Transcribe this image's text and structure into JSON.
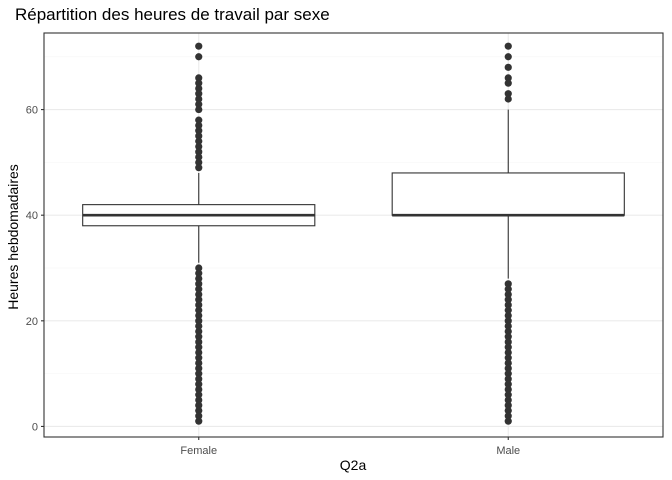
{
  "chart_data": {
    "type": "boxplot",
    "title": "Répartition des heures de travail par sexe",
    "xlabel": "Q2a",
    "ylabel": "Heures hebdomadaires",
    "categories": [
      "Female",
      "Male"
    ],
    "ylim": [
      -2,
      74.5
    ],
    "yticks": [
      0,
      20,
      40,
      60
    ],
    "ytick_labels": [
      "0",
      "20",
      "40",
      "60"
    ],
    "grid": true,
    "colors": {
      "box_fill": "#ffffff",
      "line": "#333333",
      "grid_major": "#ebebeb",
      "grid_minor": "#f5f5f5",
      "panel_border": "#333333"
    },
    "boxes": [
      {
        "category": "Female",
        "q1": 38,
        "median": 40,
        "q3": 42,
        "whisker_low": 31,
        "whisker_high": 48,
        "outliers": [
          72,
          70,
          66,
          65,
          64,
          63,
          62,
          61,
          60,
          58,
          57,
          56,
          55,
          54,
          53,
          52,
          51,
          50,
          49,
          30,
          29,
          28,
          27,
          26,
          25,
          24,
          23,
          22,
          21,
          20,
          19,
          18,
          17,
          16,
          15,
          14,
          13,
          12,
          11,
          10,
          9,
          8,
          7,
          6,
          5,
          4,
          3,
          2,
          1
        ]
      },
      {
        "category": "Male",
        "q1": 40,
        "median": 40,
        "q3": 48,
        "whisker_low": 28,
        "whisker_high": 60,
        "outliers": [
          72,
          70,
          68,
          66,
          65,
          63,
          62,
          27,
          26,
          25,
          24,
          23,
          22,
          21,
          20,
          19,
          18,
          17,
          16,
          15,
          14,
          13,
          12,
          11,
          10,
          9,
          8,
          7,
          6,
          5,
          4,
          3,
          2,
          1
        ]
      }
    ]
  }
}
